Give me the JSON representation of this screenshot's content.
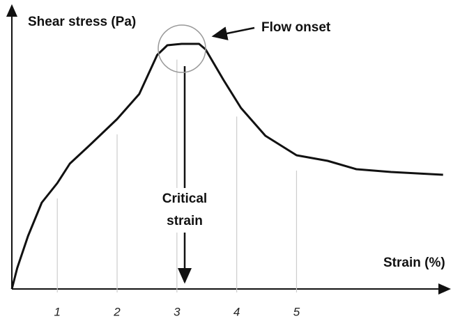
{
  "chart_data": {
    "type": "line",
    "y_label": "Shear stress (Pa)",
    "x_label": "Strain (%)",
    "annotations": [
      "Flow onset",
      "Critical strain"
    ],
    "x": [
      0.24,
      0.33,
      0.51,
      0.74,
      1,
      1.21,
      1.56,
      2,
      2.37,
      2.67,
      2.84,
      3.08,
      3.37,
      3.48,
      3.78,
      4.07,
      4.48,
      5,
      5.52,
      6,
      6.58,
      7.45
    ],
    "series": [
      {
        "color": "#111111",
        "values": [
          0,
          7.5,
          19,
          31,
          38,
          45,
          52,
          61,
          70,
          84,
          87.5,
          88,
          88,
          86,
          75,
          65,
          55,
          48,
          46,
          43,
          42,
          41
        ]
      }
    ],
    "xlim": [
      0.24,
      7.5
    ],
    "ylim": [
      0,
      100
    ],
    "xticks": [
      1,
      2,
      3,
      4,
      5
    ],
    "grid": true
  }
}
